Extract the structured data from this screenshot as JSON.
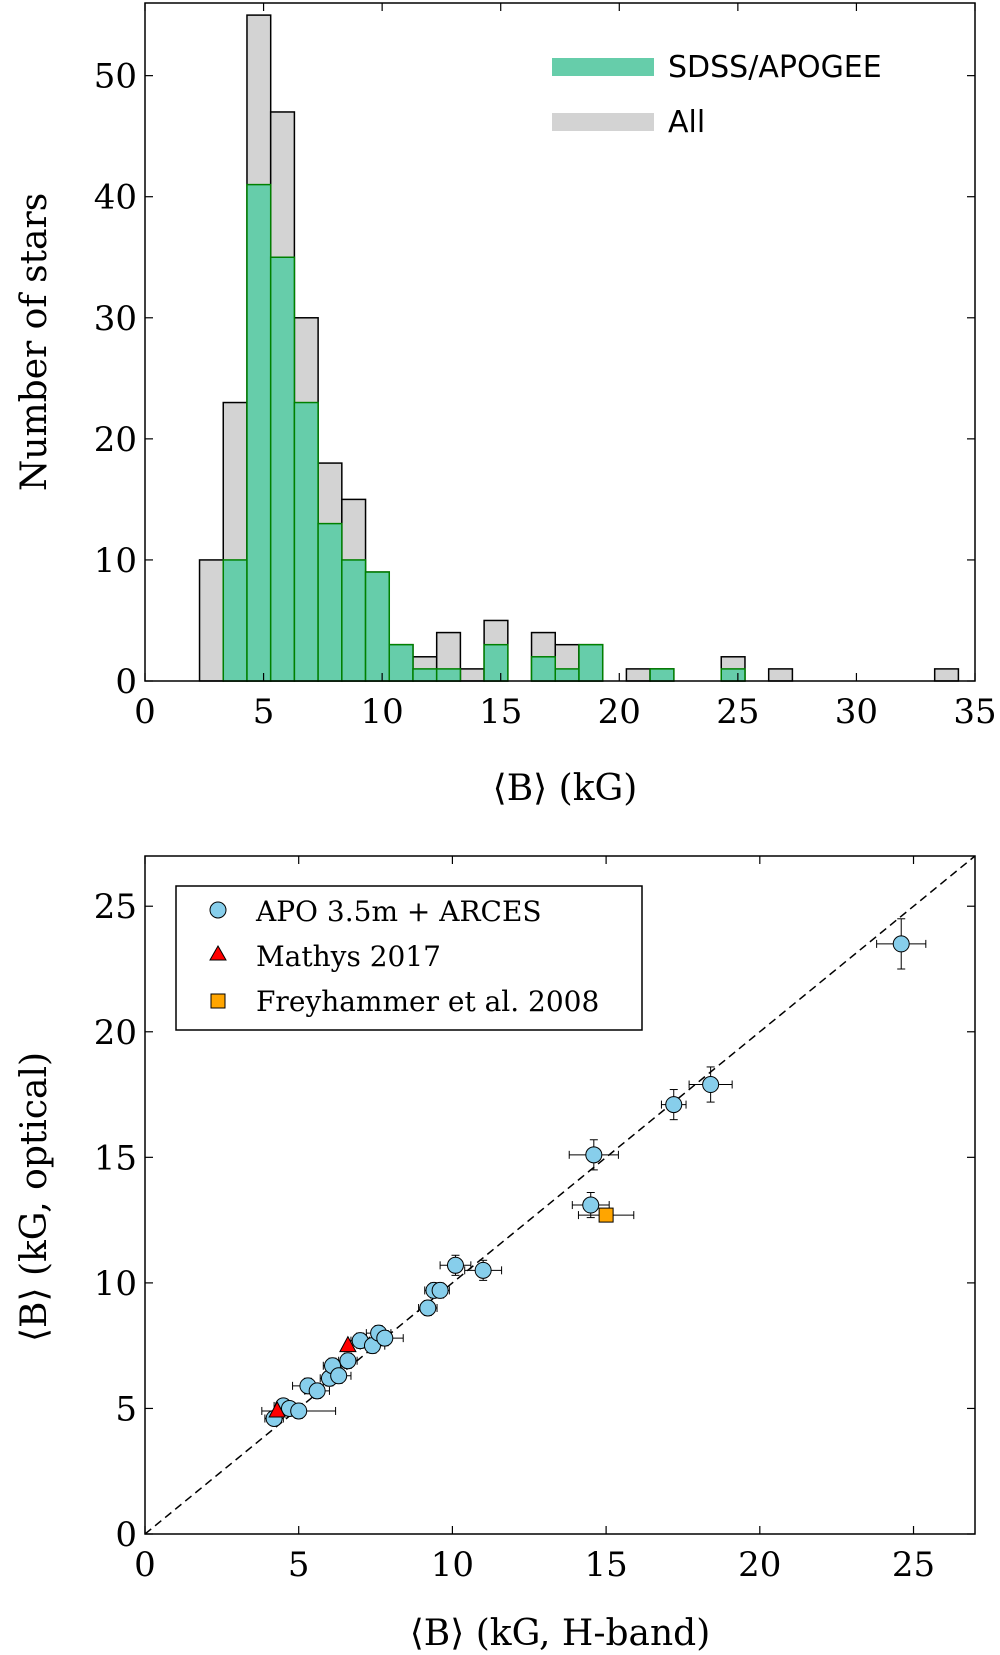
{
  "chart_data": [
    {
      "type": "bar",
      "subtype": "overlaid-histogram",
      "title": "",
      "xlabel": "⟨B⟩ (kG)",
      "ylabel": "Number of stars",
      "xlim": [
        0,
        35
      ],
      "ylim": [
        0,
        56
      ],
      "xticks": [
        "0",
        "5",
        "10",
        "15",
        "20",
        "25",
        "30",
        "35"
      ],
      "yticks": [
        "0",
        "10",
        "20",
        "30",
        "40",
        "50"
      ],
      "bin_width": 1,
      "bin_starts": [
        2.3,
        3.3,
        4.3,
        5.3,
        6.3,
        7.3,
        8.3,
        9.3,
        10.3,
        11.3,
        12.3,
        13.3,
        14.3,
        16.3,
        17.3,
        18.3,
        20.3,
        21.3,
        24.3,
        26.3,
        33.3
      ],
      "legend_position": "top-right",
      "series": [
        {
          "name": "All",
          "color": "#d3d3d3",
          "edge_color": "#000000",
          "values": [
            10,
            23,
            55,
            47,
            30,
            18,
            15,
            9,
            3,
            2,
            4,
            1,
            5,
            4,
            3,
            3,
            1,
            1,
            2,
            1,
            1
          ]
        },
        {
          "name": "SDSS/APOGEE",
          "color": "#66cdaa",
          "edge_color": "#008000",
          "values": [
            0,
            10,
            41,
            35,
            23,
            13,
            10,
            9,
            3,
            1,
            1,
            0,
            3,
            2,
            1,
            3,
            0,
            1,
            1,
            0,
            0
          ]
        }
      ]
    },
    {
      "type": "scatter",
      "title": "",
      "xlabel": "⟨B⟩ (kG, H-band)",
      "ylabel": "⟨B⟩ (kG, optical)",
      "xlim": [
        0,
        27
      ],
      "ylim": [
        0,
        27
      ],
      "xticks": [
        "0",
        "5",
        "10",
        "15",
        "20",
        "25"
      ],
      "yticks": [
        "0",
        "5",
        "10",
        "15",
        "20",
        "25"
      ],
      "reference_line": "y = x (dashed)",
      "legend_position": "top-left",
      "series": [
        {
          "name": "APO 3.5m + ARCES",
          "marker": "circle",
          "color": "#87ceeb",
          "points": [
            {
              "x": 4.2,
              "y": 4.6,
              "xerr": 0.3,
              "yerr": 0.2
            },
            {
              "x": 4.5,
              "y": 5.1,
              "xerr": 0.3,
              "yerr": 0.2
            },
            {
              "x": 4.7,
              "y": 5.0,
              "xerr": 0.3,
              "yerr": 0.2
            },
            {
              "x": 5.0,
              "y": 4.9,
              "xerr": 1.2,
              "yerr": 0.3
            },
            {
              "x": 5.3,
              "y": 5.9,
              "xerr": 0.5,
              "yerr": 0.3
            },
            {
              "x": 5.6,
              "y": 5.7,
              "xerr": 0.4,
              "yerr": 0.3
            },
            {
              "x": 6.0,
              "y": 6.2,
              "xerr": 0.3,
              "yerr": 0.3
            },
            {
              "x": 6.1,
              "y": 6.7,
              "xerr": 0.3,
              "yerr": 0.3
            },
            {
              "x": 6.3,
              "y": 6.3,
              "xerr": 0.4,
              "yerr": 0.3
            },
            {
              "x": 6.6,
              "y": 6.9,
              "xerr": 0.3,
              "yerr": 0.3
            },
            {
              "x": 7.0,
              "y": 7.7,
              "xerr": 0.3,
              "yerr": 0.3
            },
            {
              "x": 7.4,
              "y": 7.5,
              "xerr": 0.4,
              "yerr": 0.3
            },
            {
              "x": 7.6,
              "y": 8.0,
              "xerr": 0.4,
              "yerr": 0.3
            },
            {
              "x": 7.8,
              "y": 7.8,
              "xerr": 0.6,
              "yerr": 0.3
            },
            {
              "x": 9.2,
              "y": 9.0,
              "xerr": 0.3,
              "yerr": 0.3
            },
            {
              "x": 9.4,
              "y": 9.7,
              "xerr": 0.3,
              "yerr": 0.3
            },
            {
              "x": 9.6,
              "y": 9.7,
              "xerr": 0.3,
              "yerr": 0.3
            },
            {
              "x": 10.1,
              "y": 10.7,
              "xerr": 0.5,
              "yerr": 0.4
            },
            {
              "x": 11.0,
              "y": 10.5,
              "xerr": 0.6,
              "yerr": 0.4
            },
            {
              "x": 14.5,
              "y": 13.1,
              "xerr": 0.6,
              "yerr": 0.5
            },
            {
              "x": 14.6,
              "y": 15.1,
              "xerr": 0.8,
              "yerr": 0.6
            },
            {
              "x": 17.2,
              "y": 17.1,
              "xerr": 0.4,
              "yerr": 0.6
            },
            {
              "x": 18.4,
              "y": 17.9,
              "xerr": 0.7,
              "yerr": 0.7
            },
            {
              "x": 24.6,
              "y": 23.5,
              "xerr": 0.8,
              "yerr": 1.0
            }
          ]
        },
        {
          "name": "Mathys 2017",
          "marker": "triangle",
          "color": "#ff0000",
          "points": [
            {
              "x": 4.3,
              "y": 4.9,
              "xerr": 0.0,
              "yerr": 0.0
            },
            {
              "x": 6.6,
              "y": 7.5,
              "xerr": 0.0,
              "yerr": 0.0
            }
          ]
        },
        {
          "name": "Freyhammer et al. 2008",
          "marker": "square",
          "color": "#ffa500",
          "points": [
            {
              "x": 15.0,
              "y": 12.7,
              "xerr": 0.9,
              "yerr": 0.0
            }
          ]
        }
      ]
    }
  ]
}
